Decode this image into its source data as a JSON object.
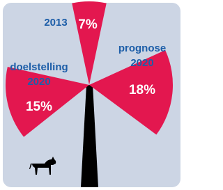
{
  "chart_data": {
    "type": "windmill",
    "blades": [
      {
        "label": [
          "2013"
        ],
        "value": 7,
        "value_label": "7%",
        "color": "#e3174f"
      },
      {
        "label": [
          "doelstelling",
          "2020"
        ],
        "value": 15,
        "value_label": "15%",
        "color": "#e3174f"
      },
      {
        "label": [
          "prognose",
          "2020"
        ],
        "value": 18,
        "value_label": "18%",
        "color": "#e3174f"
      }
    ]
  }
}
